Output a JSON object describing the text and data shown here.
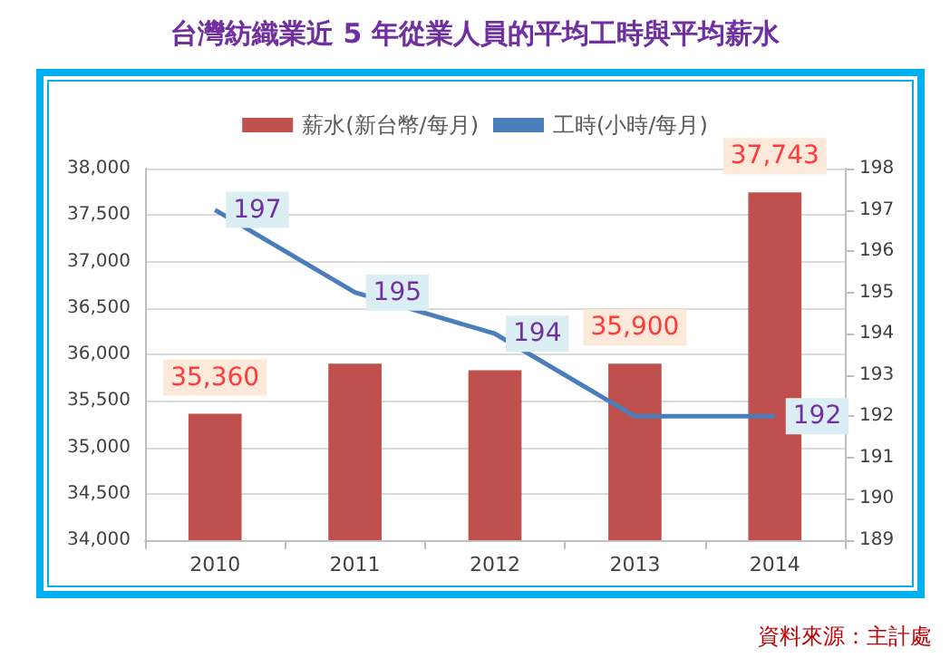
{
  "chart_data": {
    "type": "bar",
    "title": "台灣紡織業近 5 年從業人員的平均工時與平均薪水",
    "categories": [
      "2010",
      "2011",
      "2012",
      "2013",
      "2014"
    ],
    "series": [
      {
        "name": "薪水(新台幣/每月)",
        "color": "#c0504d",
        "values": [
          35360,
          35900,
          35830,
          35900,
          37743
        ],
        "value_labels": [
          "35,360",
          null,
          null,
          "35,900",
          "37,743"
        ]
      },
      {
        "name": "工時(小時/每月)",
        "type": "line",
        "axis": "y2",
        "color": "#4a7ebb",
        "values": [
          197,
          195,
          194,
          192,
          192
        ],
        "value_labels": [
          "197",
          "195",
          "194",
          null,
          "192"
        ]
      }
    ],
    "ylim": [
      34000,
      38000
    ],
    "yticks": [
      {
        "value": 34000,
        "label": "34,000"
      },
      {
        "value": 34500,
        "label": "34,500"
      },
      {
        "value": 35000,
        "label": "35,000"
      },
      {
        "value": 35500,
        "label": "35,500"
      },
      {
        "value": 36000,
        "label": "36,000"
      },
      {
        "value": 36500,
        "label": "36,500"
      },
      {
        "value": 37000,
        "label": "37,000"
      },
      {
        "value": 37500,
        "label": "37,500"
      },
      {
        "value": 38000,
        "label": "38,000"
      }
    ],
    "y2lim": [
      189,
      198
    ],
    "y2ticks": [
      189,
      190,
      191,
      192,
      193,
      194,
      195,
      196,
      197,
      198
    ],
    "grid": "y",
    "legend": "top",
    "marker": "none",
    "annotations": [
      "資料來源：主計處"
    ]
  }
}
